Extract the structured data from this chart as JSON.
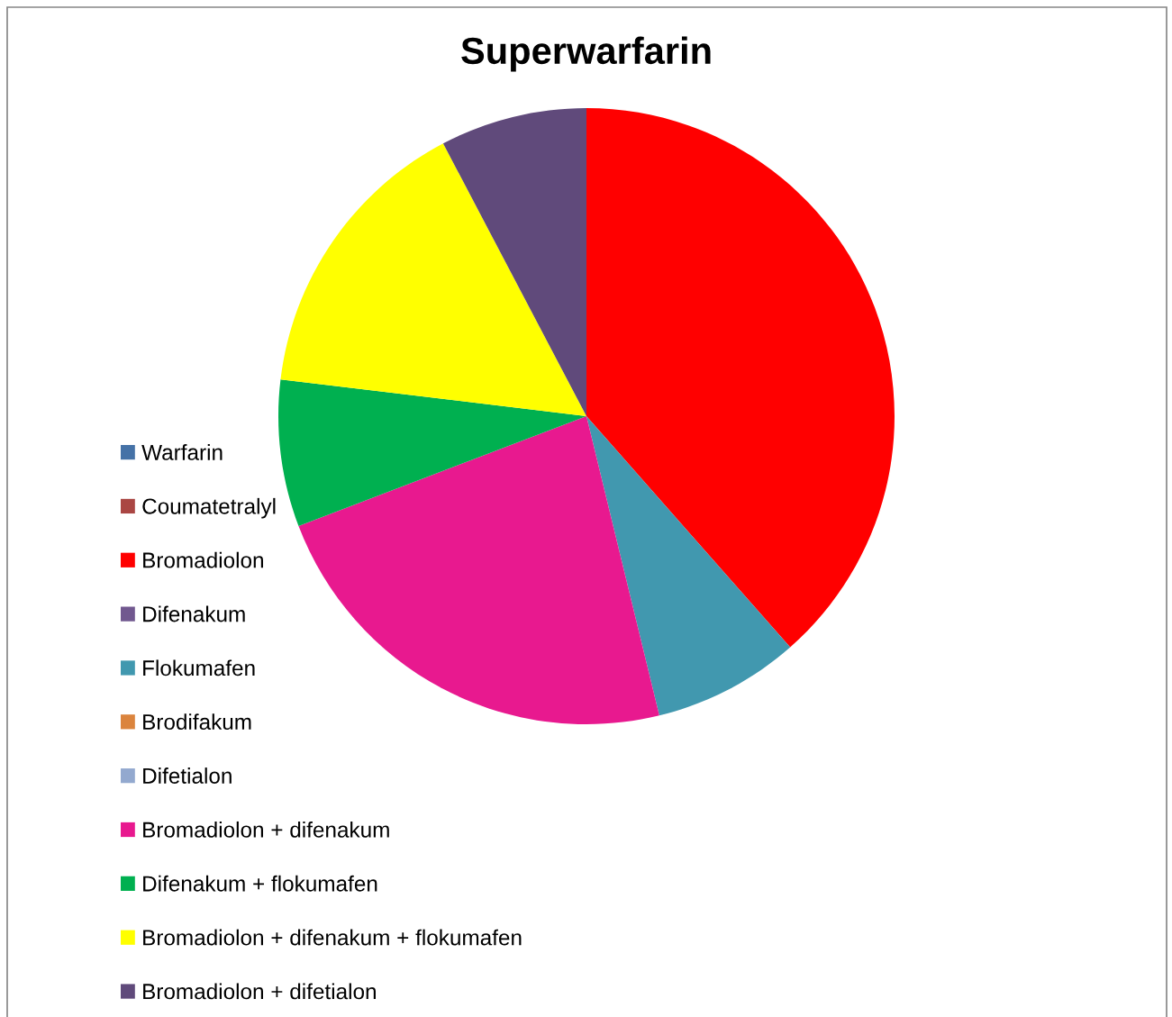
{
  "chart_data": {
    "type": "pie",
    "title": "Superwarfarin",
    "categories": [
      "Warfarin",
      "Coumatetralyl",
      "Bromadiolon",
      "Difenakum",
      "Flokumafen",
      "Brodifakum",
      "Difetialon",
      "Bromadiolon + difenakum",
      "Difenakum + flokumafen",
      "Bromadiolon + difenakum + flokumafen",
      "Bromadiolon + difetialon"
    ],
    "values": [
      0,
      0,
      38.5,
      0,
      7.7,
      0,
      0,
      23.0,
      7.7,
      15.4,
      7.7
    ],
    "colors": [
      "#4572a7",
      "#aa4643",
      "#ff0000",
      "#71588f",
      "#4198af",
      "#db843d",
      "#93a9cf",
      "#e8198f",
      "#00b050",
      "#ffff00",
      "#604a7b"
    ],
    "legend": "left"
  }
}
